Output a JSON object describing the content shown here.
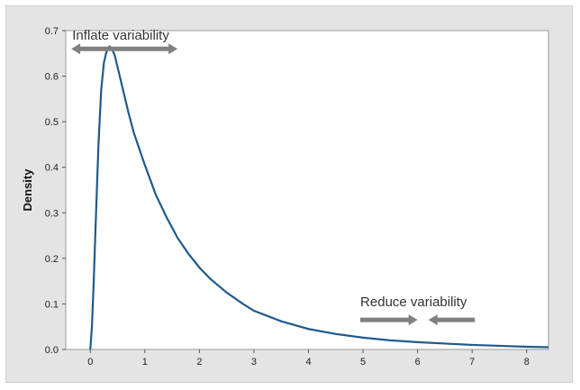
{
  "chart_data": {
    "type": "line",
    "title": "",
    "xlabel": "",
    "ylabel": "Density",
    "xlim": [
      -0.45,
      8.4
    ],
    "ylim": [
      0,
      0.7
    ],
    "x_ticks": [
      0,
      1,
      2,
      3,
      4,
      5,
      6,
      7,
      8
    ],
    "y_ticks": [
      0.0,
      0.1,
      0.2,
      0.3,
      0.4,
      0.5,
      0.6,
      0.7
    ],
    "grid": false,
    "series": [
      {
        "color": "#1f5a8c",
        "points": [
          [
            0.0,
            0.0
          ],
          [
            0.03,
            0.05
          ],
          [
            0.06,
            0.14
          ],
          [
            0.1,
            0.28
          ],
          [
            0.15,
            0.45
          ],
          [
            0.2,
            0.57
          ],
          [
            0.25,
            0.63
          ],
          [
            0.3,
            0.655
          ],
          [
            0.35,
            0.665
          ],
          [
            0.4,
            0.66
          ],
          [
            0.45,
            0.645
          ],
          [
            0.5,
            0.62
          ],
          [
            0.6,
            0.57
          ],
          [
            0.7,
            0.52
          ],
          [
            0.8,
            0.475
          ],
          [
            0.9,
            0.44
          ],
          [
            1.0,
            0.405
          ],
          [
            1.2,
            0.34
          ],
          [
            1.4,
            0.29
          ],
          [
            1.6,
            0.245
          ],
          [
            1.8,
            0.21
          ],
          [
            2.0,
            0.18
          ],
          [
            2.2,
            0.155
          ],
          [
            2.5,
            0.125
          ],
          [
            2.8,
            0.1
          ],
          [
            3.0,
            0.085
          ],
          [
            3.5,
            0.062
          ],
          [
            4.0,
            0.045
          ],
          [
            4.5,
            0.034
          ],
          [
            5.0,
            0.026
          ],
          [
            5.5,
            0.02
          ],
          [
            6.0,
            0.016
          ],
          [
            6.5,
            0.013
          ],
          [
            7.0,
            0.01
          ],
          [
            7.5,
            0.008
          ],
          [
            8.0,
            0.006
          ],
          [
            8.4,
            0.005
          ]
        ]
      }
    ],
    "annotations": [
      {
        "text": "Inflate variability",
        "arrow": {
          "y": 0.66,
          "x_from": -0.35,
          "x_to": 1.6,
          "direction": "both-outward",
          "color": "#808080"
        }
      },
      {
        "text": "Reduce variability",
        "arrows": [
          {
            "y": 0.065,
            "x_from": 4.95,
            "x_to": 6.0,
            "direction": "right",
            "color": "#808080"
          },
          {
            "y": 0.065,
            "x_from": 7.05,
            "x_to": 6.2,
            "direction": "left",
            "color": "#808080"
          }
        ]
      }
    ]
  }
}
